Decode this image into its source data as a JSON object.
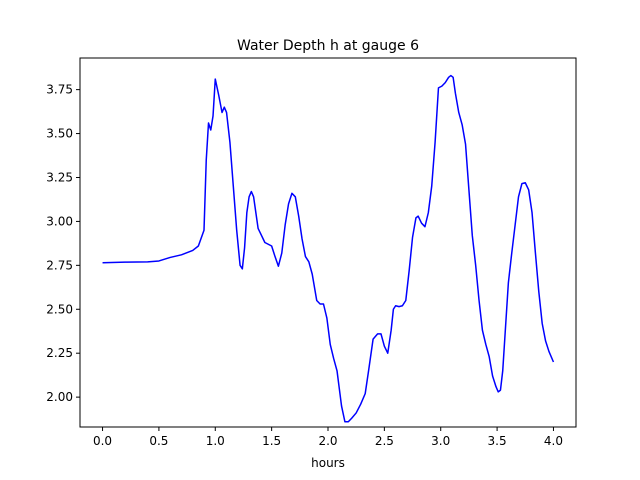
{
  "chart_data": {
    "type": "line",
    "title": "Water Depth h at gauge 6",
    "xlabel": "hours",
    "ylabel": "",
    "xlim": [
      -0.2,
      4.2
    ],
    "ylim": [
      1.83,
      3.93
    ],
    "xticks": [
      0.0,
      0.5,
      1.0,
      1.5,
      2.0,
      2.5,
      3.0,
      3.5,
      4.0
    ],
    "xtick_labels": [
      "0.0",
      "0.5",
      "1.0",
      "1.5",
      "2.0",
      "2.5",
      "3.0",
      "3.5",
      "4.0"
    ],
    "yticks": [
      2.0,
      2.25,
      2.5,
      2.75,
      3.0,
      3.25,
      3.5,
      3.75
    ],
    "ytick_labels": [
      "2.00",
      "2.25",
      "2.50",
      "2.75",
      "3.00",
      "3.25",
      "3.50",
      "3.75"
    ],
    "grid": false,
    "series": [
      {
        "color": "#0000ff",
        "x": [
          0.0,
          0.2,
          0.4,
          0.5,
          0.6,
          0.7,
          0.8,
          0.85,
          0.9,
          0.92,
          0.94,
          0.96,
          0.98,
          1.0,
          1.03,
          1.06,
          1.08,
          1.1,
          1.13,
          1.16,
          1.19,
          1.22,
          1.24,
          1.26,
          1.28,
          1.3,
          1.32,
          1.34,
          1.36,
          1.38,
          1.41,
          1.44,
          1.47,
          1.5,
          1.53,
          1.56,
          1.59,
          1.62,
          1.65,
          1.68,
          1.71,
          1.74,
          1.77,
          1.8,
          1.83,
          1.86,
          1.9,
          1.93,
          1.96,
          1.99,
          2.02,
          2.05,
          2.08,
          2.1,
          2.12,
          2.15,
          2.18,
          2.21,
          2.25,
          2.29,
          2.33,
          2.36,
          2.4,
          2.44,
          2.47,
          2.5,
          2.53,
          2.56,
          2.58,
          2.6,
          2.63,
          2.66,
          2.69,
          2.72,
          2.75,
          2.78,
          2.8,
          2.83,
          2.86,
          2.89,
          2.92,
          2.95,
          2.98,
          3.01,
          3.04,
          3.07,
          3.09,
          3.11,
          3.13,
          3.16,
          3.19,
          3.22,
          3.25,
          3.28,
          3.31,
          3.34,
          3.37,
          3.4,
          3.43,
          3.46,
          3.49,
          3.51,
          3.53,
          3.55,
          3.57,
          3.6,
          3.63,
          3.66,
          3.69,
          3.72,
          3.75,
          3.78,
          3.81,
          3.84,
          3.87,
          3.9,
          3.93,
          3.96,
          4.0
        ],
        "y": [
          2.765,
          2.768,
          2.77,
          2.775,
          2.795,
          2.81,
          2.835,
          2.86,
          2.95,
          3.35,
          3.56,
          3.52,
          3.6,
          3.81,
          3.72,
          3.62,
          3.65,
          3.62,
          3.45,
          3.2,
          2.95,
          2.75,
          2.73,
          2.85,
          3.05,
          3.14,
          3.17,
          3.14,
          3.05,
          2.96,
          2.92,
          2.88,
          2.87,
          2.86,
          2.8,
          2.745,
          2.82,
          2.98,
          3.1,
          3.16,
          3.14,
          3.03,
          2.9,
          2.8,
          2.77,
          2.7,
          2.55,
          2.53,
          2.53,
          2.45,
          2.3,
          2.22,
          2.15,
          2.05,
          1.95,
          1.86,
          1.86,
          1.88,
          1.91,
          1.96,
          2.02,
          2.15,
          2.33,
          2.36,
          2.36,
          2.29,
          2.25,
          2.38,
          2.5,
          2.52,
          2.515,
          2.52,
          2.55,
          2.72,
          2.91,
          3.02,
          3.03,
          2.99,
          2.97,
          3.05,
          3.2,
          3.45,
          3.76,
          3.77,
          3.79,
          3.82,
          3.83,
          3.82,
          3.73,
          3.62,
          3.55,
          3.44,
          3.18,
          2.92,
          2.75,
          2.55,
          2.38,
          2.3,
          2.23,
          2.12,
          2.06,
          2.03,
          2.04,
          2.15,
          2.35,
          2.65,
          2.82,
          2.98,
          3.14,
          3.215,
          3.22,
          3.18,
          3.05,
          2.82,
          2.6,
          2.42,
          2.32,
          2.26,
          2.2
        ]
      }
    ]
  }
}
